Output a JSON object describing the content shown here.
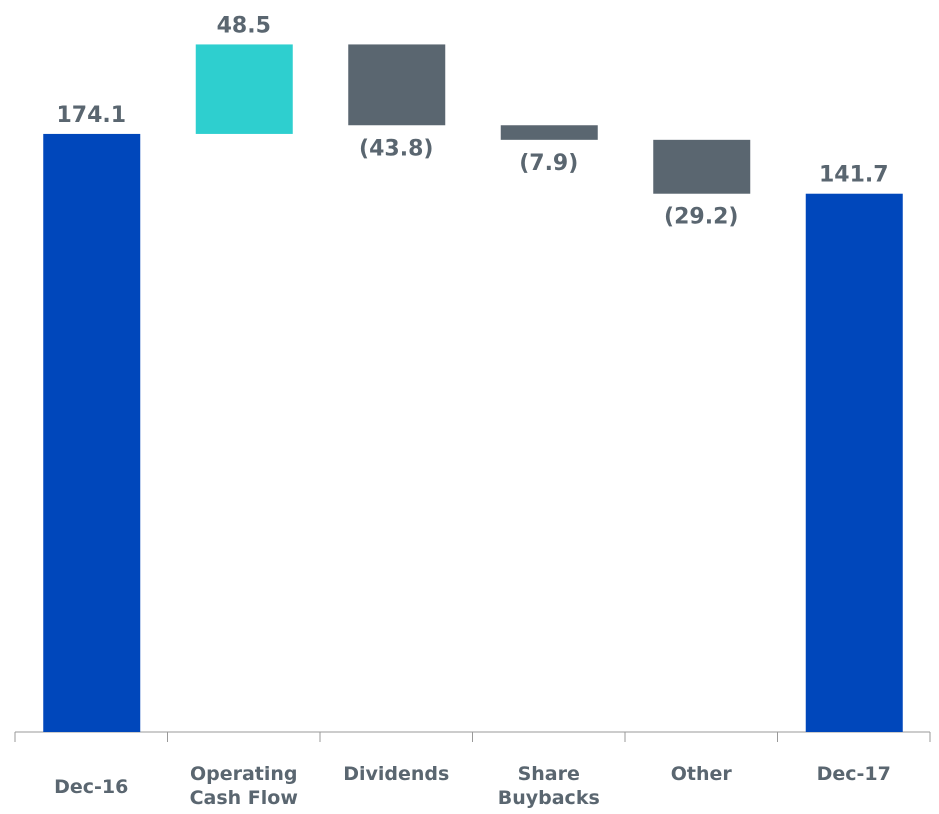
{
  "chart_data": {
    "type": "waterfall",
    "categories": [
      "Dec-16",
      "Operating Cash Flow",
      "Dividends",
      "Share Buybacks",
      "Other",
      "Dec-17"
    ],
    "values": [
      174.1,
      48.5,
      -43.8,
      -7.9,
      -29.2,
      141.7
    ],
    "value_labels": [
      "174.1",
      "48.5",
      "(43.8)",
      "(7.9)",
      "(29.2)",
      "141.7"
    ],
    "measure": [
      "absolute",
      "relative",
      "relative",
      "relative",
      "relative",
      "total"
    ],
    "colors": [
      "#0047bb",
      "#2ecfcf",
      "#5a6670",
      "#5a6670",
      "#5a6670",
      "#0047bb"
    ],
    "ylim": [
      -150,
      225
    ]
  }
}
